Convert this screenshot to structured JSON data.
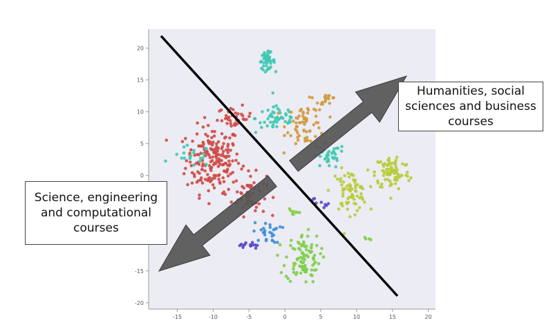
{
  "chart_data": {
    "type": "scatter",
    "title": "",
    "xlabel": "",
    "ylabel": "",
    "xlim": [
      -19,
      21
    ],
    "ylim": [
      -21,
      23
    ],
    "x_ticks": [
      -15,
      -10,
      -5,
      0,
      5,
      10,
      15,
      20
    ],
    "y_ticks": [
      -20,
      -15,
      -10,
      -5,
      0,
      5,
      10,
      15,
      20
    ],
    "grid": false,
    "background": "#ececf4",
    "clusters": [
      {
        "color": "#cf4a45",
        "center": [
          -10,
          2.5
        ],
        "spread": [
          3.4,
          4.8
        ],
        "n": 190
      },
      {
        "color": "#cf4a45",
        "center": [
          -5,
          -3
        ],
        "spread": [
          2.2,
          3
        ],
        "n": 55
      },
      {
        "color": "#cf4a45",
        "center": [
          -7,
          9
        ],
        "spread": [
          2.2,
          1.6
        ],
        "n": 35
      },
      {
        "color": "#3ec9b0",
        "center": [
          -2.5,
          18
        ],
        "spread": [
          1,
          1.2
        ],
        "n": 45
      },
      {
        "color": "#3ec9b0",
        "center": [
          -1,
          9
        ],
        "spread": [
          2.8,
          2.2
        ],
        "n": 50
      },
      {
        "color": "#3ec9b0",
        "center": [
          6,
          3
        ],
        "spread": [
          2.2,
          1.8
        ],
        "n": 35
      },
      {
        "color": "#3ec9b0",
        "center": [
          -13,
          3
        ],
        "spread": [
          2.5,
          1.5
        ],
        "n": 20
      },
      {
        "color": "#d19a3e",
        "center": [
          3,
          8
        ],
        "spread": [
          2.5,
          3.2
        ],
        "n": 65
      },
      {
        "color": "#d19a3e",
        "center": [
          6,
          12
        ],
        "spread": [
          1,
          0.7
        ],
        "n": 15
      },
      {
        "color": "#b9cc3a",
        "center": [
          9,
          -2.5
        ],
        "spread": [
          2.3,
          3
        ],
        "n": 75
      },
      {
        "color": "#b9cc3a",
        "center": [
          15,
          0.5
        ],
        "spread": [
          2.2,
          2.6
        ],
        "n": 85
      },
      {
        "color": "#7fcf4a",
        "center": [
          2.5,
          -13
        ],
        "spread": [
          2.2,
          3.5
        ],
        "n": 95
      },
      {
        "color": "#7fcf4a",
        "center": [
          1,
          -6
        ],
        "spread": [
          0.8,
          0.8
        ],
        "n": 8
      },
      {
        "color": "#7fcf4a",
        "center": [
          11.5,
          -10
        ],
        "spread": [
          0.5,
          0.3
        ],
        "n": 4
      },
      {
        "color": "#3b8fd6",
        "center": [
          -2.5,
          -9
        ],
        "spread": [
          1.8,
          1.5
        ],
        "n": 28
      },
      {
        "color": "#5448c9",
        "center": [
          -5,
          -11
        ],
        "spread": [
          1.2,
          0.6
        ],
        "n": 14
      },
      {
        "color": "#5448c9",
        "center": [
          5,
          -4
        ],
        "spread": [
          1,
          1.2
        ],
        "n": 8
      }
    ],
    "annotations": [
      {
        "text": "Humanities, social sciences and business courses"
      },
      {
        "text": "Science, engineering and computational courses"
      }
    ]
  }
}
